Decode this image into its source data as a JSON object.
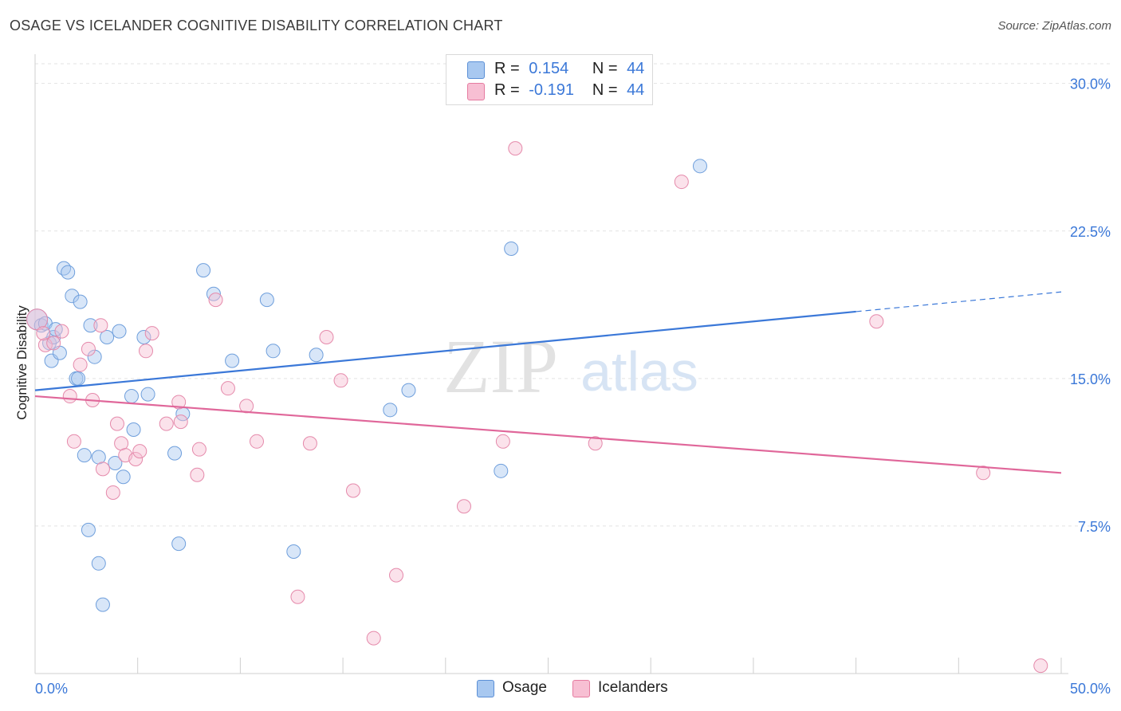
{
  "title": "OSAGE VS ICELANDER COGNITIVE DISABILITY CORRELATION CHART",
  "source": "Source: ZipAtlas.com",
  "watermark": {
    "zip": "ZIP",
    "atlas": "atlas"
  },
  "legend_top": {
    "rows": [
      {
        "r_label": "R =",
        "r_value": "0.154",
        "n_label": "N =",
        "n_value": "44",
        "color": "#a8c8f0",
        "border": "#5b8fd6"
      },
      {
        "r_label": "R =",
        "r_value": "-0.191",
        "n_label": "N =",
        "n_value": "44",
        "color": "#f7bfd3",
        "border": "#e57ba0"
      }
    ]
  },
  "legend_bottom": [
    {
      "label": "Osage",
      "color": "#a8c8f0",
      "border": "#5b8fd6"
    },
    {
      "label": "Icelanders",
      "color": "#f7bfd3",
      "border": "#e57ba0"
    }
  ],
  "chart_data": {
    "type": "scatter",
    "title": "OSAGE VS ICELANDER COGNITIVE DISABILITY CORRELATION CHART",
    "xlabel": "",
    "ylabel": "Cognitive Disability",
    "xlim": [
      0,
      50
    ],
    "ylim": [
      0,
      31
    ],
    "x_tick_labels": [
      "0.0%",
      "50.0%"
    ],
    "y_ticks": [
      7.5,
      15.0,
      22.5,
      30.0
    ],
    "y_tick_labels": [
      "7.5%",
      "15.0%",
      "22.5%",
      "30.0%"
    ],
    "grid": "horizontal dashed",
    "colors": {
      "Osage": "#3b78d8",
      "Icelanders": "#e0679a"
    },
    "series": [
      {
        "name": "Osage",
        "trend": {
          "x0": 0,
          "y0": 14.4,
          "x1": 40,
          "y1": 18.4,
          "dashed_to_x": 50,
          "dashed_y1": 19.4
        },
        "points": [
          [
            0.1,
            18.0
          ],
          [
            0.3,
            17.7
          ],
          [
            0.5,
            17.8
          ],
          [
            0.7,
            16.8
          ],
          [
            0.8,
            15.9
          ],
          [
            0.9,
            17.1
          ],
          [
            1.0,
            17.5
          ],
          [
            1.2,
            16.3
          ],
          [
            1.4,
            20.6
          ],
          [
            1.6,
            20.4
          ],
          [
            1.8,
            19.2
          ],
          [
            2.0,
            15.0
          ],
          [
            2.1,
            15.0
          ],
          [
            2.2,
            18.9
          ],
          [
            2.4,
            11.1
          ],
          [
            2.6,
            7.3
          ],
          [
            2.7,
            17.7
          ],
          [
            2.9,
            16.1
          ],
          [
            3.1,
            11.0
          ],
          [
            3.1,
            5.6
          ],
          [
            3.3,
            3.5
          ],
          [
            3.5,
            17.1
          ],
          [
            3.9,
            10.7
          ],
          [
            4.1,
            17.4
          ],
          [
            4.3,
            10.0
          ],
          [
            4.7,
            14.1
          ],
          [
            4.8,
            12.4
          ],
          [
            5.3,
            17.1
          ],
          [
            5.5,
            14.2
          ],
          [
            6.8,
            11.2
          ],
          [
            7.0,
            6.6
          ],
          [
            7.2,
            13.2
          ],
          [
            8.2,
            20.5
          ],
          [
            8.7,
            19.3
          ],
          [
            9.6,
            15.9
          ],
          [
            11.3,
            19.0
          ],
          [
            11.6,
            16.4
          ],
          [
            12.6,
            6.2
          ],
          [
            13.7,
            16.2
          ],
          [
            17.3,
            13.4
          ],
          [
            18.2,
            14.4
          ],
          [
            22.7,
            10.3
          ],
          [
            23.2,
            21.6
          ],
          [
            32.4,
            25.8
          ]
        ]
      },
      {
        "name": "Icelanders",
        "trend": {
          "x0": 0,
          "y0": 14.1,
          "x1": 50,
          "y1": 10.2
        },
        "points": [
          [
            0.1,
            18.0
          ],
          [
            0.5,
            16.7
          ],
          [
            0.9,
            16.8
          ],
          [
            1.3,
            17.4
          ],
          [
            1.7,
            14.1
          ],
          [
            1.9,
            11.8
          ],
          [
            2.2,
            15.7
          ],
          [
            2.6,
            16.5
          ],
          [
            2.8,
            13.9
          ],
          [
            3.2,
            17.7
          ],
          [
            3.3,
            10.4
          ],
          [
            3.8,
            9.2
          ],
          [
            4.0,
            12.7
          ],
          [
            4.2,
            11.7
          ],
          [
            4.4,
            11.1
          ],
          [
            4.9,
            10.9
          ],
          [
            5.1,
            11.3
          ],
          [
            5.4,
            16.4
          ],
          [
            5.7,
            17.3
          ],
          [
            6.4,
            12.7
          ],
          [
            7.0,
            13.8
          ],
          [
            7.1,
            12.8
          ],
          [
            7.9,
            10.1
          ],
          [
            8.0,
            11.4
          ],
          [
            8.8,
            19.0
          ],
          [
            9.4,
            14.5
          ],
          [
            10.3,
            13.6
          ],
          [
            10.8,
            11.8
          ],
          [
            12.8,
            3.9
          ],
          [
            13.4,
            11.7
          ],
          [
            14.2,
            17.1
          ],
          [
            14.9,
            14.9
          ],
          [
            15.5,
            9.3
          ],
          [
            17.6,
            5.0
          ],
          [
            16.5,
            1.8
          ],
          [
            20.9,
            8.5
          ],
          [
            22.8,
            11.8
          ],
          [
            23.4,
            26.7
          ],
          [
            27.3,
            11.7
          ],
          [
            31.5,
            25.0
          ],
          [
            41.0,
            17.9
          ],
          [
            46.2,
            10.2
          ],
          [
            49.0,
            0.4
          ],
          [
            0.4,
            17.3
          ]
        ]
      }
    ]
  }
}
